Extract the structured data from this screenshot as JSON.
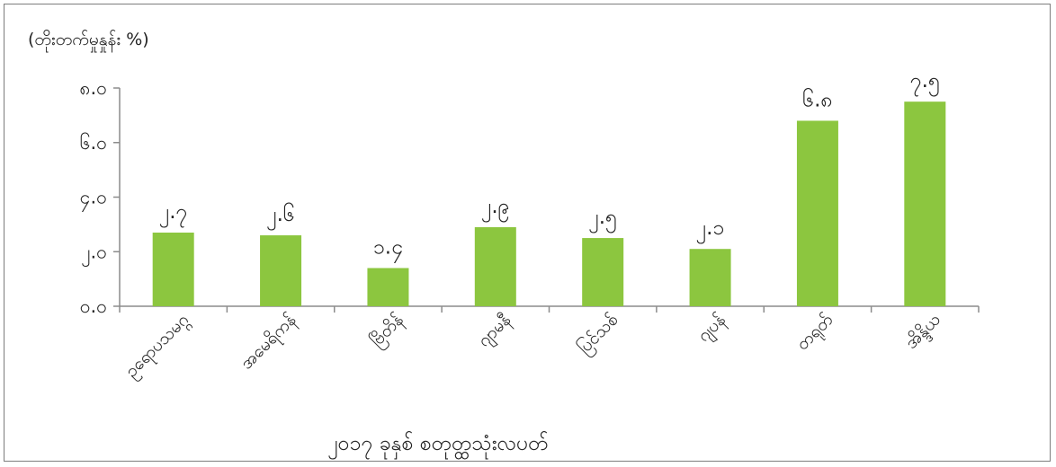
{
  "chart_data": {
    "type": "bar",
    "ylabel": "(တိုးတက်မှုနှုန်း %)",
    "xlabel": "၂၀၁၇ ခုနှစ် စတုတ္ထသုံးလပတ်",
    "categories": [
      "ဥရောပသမဂ္ဂ",
      "အမေရိကန်",
      "ဗြိတိန်",
      "ဂျာမနီ",
      "ပြင်သစ်",
      "ဂျပန်",
      "တရုတ်",
      "အိန္ဒိယ"
    ],
    "values": [
      2.7,
      2.6,
      1.4,
      2.9,
      2.5,
      2.1,
      6.8,
      7.5
    ],
    "value_labels": [
      "၂.၇",
      "၂.၆",
      "၁.၄",
      "၂.၉",
      "၂.၅",
      "၂.၁",
      "၆.၈",
      "၇.၅"
    ],
    "ylim": [
      0,
      8
    ],
    "yticks": [
      0,
      2,
      4,
      6,
      8
    ],
    "ytick_labels": [
      "၀.၀",
      "၂.၀",
      "၄.၀",
      "၆.၀",
      "၈.၀"
    ],
    "grid": false,
    "bar_color": "#8cc63f",
    "axis_color": "#8c8c8c"
  }
}
